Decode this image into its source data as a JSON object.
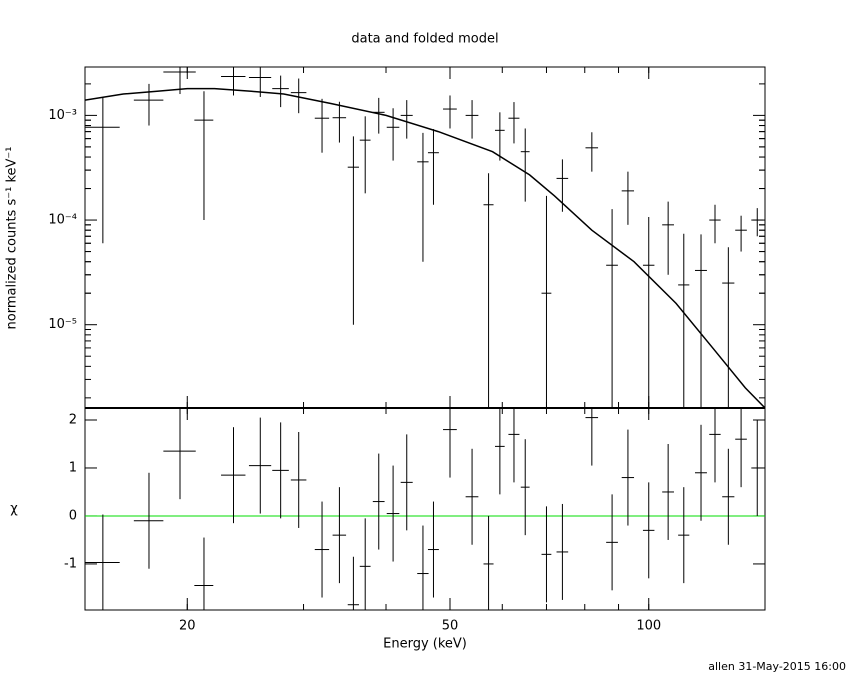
{
  "footer": "allen 31-May-2015 16:00",
  "chart_data": [
    {
      "type": "errorbar",
      "title": "data and folded model",
      "ylabel": "normalized counts s⁻¹ keV⁻¹",
      "log_x": true,
      "log_y": true,
      "color": "#000000",
      "xlim": [
        14,
        150
      ],
      "ylim": [
        1.6e-06,
        0.0029
      ],
      "yticks": [
        {
          "value": 1e-05,
          "label": "10⁻⁵"
        },
        {
          "value": 0.0001,
          "label": "10⁻⁴"
        },
        {
          "value": 0.001,
          "label": "10⁻³"
        }
      ],
      "x": [
        14.9,
        17.5,
        19.5,
        21.2,
        23.5,
        25.8,
        27.7,
        29.5,
        32,
        34,
        35.7,
        37.2,
        39,
        41,
        43,
        45.5,
        47.2,
        50,
        54,
        57.2,
        59.5,
        62.5,
        65,
        70,
        74,
        82,
        88,
        93,
        100,
        107,
        113,
        120,
        126,
        132,
        138,
        146
      ],
      "x_err": [
        0.9,
        0.9,
        1.1,
        0.7,
        1.0,
        1.0,
        0.8,
        0.8,
        0.8,
        0.8,
        0.7,
        0.7,
        0.8,
        0.9,
        0.9,
        0.9,
        0.9,
        1.2,
        1.2,
        1.0,
        1.0,
        1.2,
        1.0,
        1.2,
        1.5,
        1.8,
        1.8,
        2,
        2,
        2.2,
        2.2,
        2.5,
        2.5,
        2.8,
        2.8,
        3
      ],
      "values": [
        0.00077,
        0.0014,
        0.0026,
        0.0009,
        0.00235,
        0.0023,
        0.0018,
        0.00165,
        0.00094,
        0.00095,
        0.00032,
        0.00058,
        0.00107,
        0.00077,
        0.001,
        0.00036,
        0.00044,
        0.00115,
        0.001,
        0.00014,
        0.00072,
        0.00094,
        0.00045,
        2e-05,
        0.00025,
        0.00049,
        3.7e-05,
        0.00019,
        3.7e-05,
        9e-05,
        2.4e-05,
        3.3e-05,
        0.0001,
        2.5e-05,
        8e-05,
        0.0001
      ],
      "errors": [
        0.00071,
        0.0006,
        0.001,
        0.0008,
        0.0008,
        0.0008,
        0.0006,
        0.0006,
        0.0005,
        0.0004,
        0.00031,
        0.0004,
        0.0004,
        0.0004,
        0.0004,
        0.00032,
        0.0003,
        0.0004,
        0.0004,
        0.00014,
        0.00035,
        0.0004,
        0.0003,
        0.00015,
        0.00013,
        0.0002,
        9e-05,
        0.0001,
        7e-05,
        6e-05,
        5e-05,
        4e-05,
        4e-05,
        3e-05,
        3e-05,
        3e-05
      ],
      "model": {
        "x": [
          14,
          16,
          18,
          20,
          22,
          25,
          28,
          33,
          40,
          48,
          58,
          66,
          72,
          82,
          95,
          110,
          125,
          140,
          150
        ],
        "values": [
          0.0014,
          0.0016,
          0.0017,
          0.0018,
          0.0018,
          0.0017,
          0.0016,
          0.0013,
          0.001,
          0.0007,
          0.00045,
          0.00027,
          0.00017,
          8e-05,
          4e-05,
          1.6e-05,
          6e-06,
          2.5e-06,
          1.6e-06
        ]
      }
    },
    {
      "type": "errorbar",
      "xlabel": "Energy (keV)",
      "ylabel": "χ",
      "log_x": true,
      "log_y": false,
      "color": "#000000",
      "zero_line_color": "#00dd00",
      "xlim": [
        14,
        150
      ],
      "ylim": [
        -1.96,
        2.25
      ],
      "xticks": [
        20,
        50,
        100
      ],
      "yticks": [
        -1,
        0,
        1,
        2
      ],
      "x": [
        14.9,
        17.5,
        19.5,
        21.2,
        23.5,
        25.8,
        27.7,
        29.5,
        32,
        34,
        35.7,
        37.2,
        39,
        41,
        43,
        45.5,
        47.2,
        50,
        54,
        57.2,
        59.5,
        62.5,
        65,
        70,
        74,
        82,
        88,
        93,
        100,
        107,
        113,
        120,
        126,
        132,
        138,
        146
      ],
      "x_err": [
        0.9,
        0.9,
        1.1,
        0.7,
        1.0,
        1.0,
        0.8,
        0.8,
        0.8,
        0.8,
        0.7,
        0.7,
        0.8,
        0.9,
        0.9,
        0.9,
        0.9,
        1.2,
        1.2,
        1.0,
        1.0,
        1.2,
        1.0,
        1.2,
        1.5,
        1.8,
        1.8,
        2,
        2,
        2.2,
        2.2,
        2.5,
        2.5,
        2.8,
        2.8,
        3
      ],
      "values": [
        -0.97,
        -0.1,
        1.35,
        -1.45,
        0.85,
        1.05,
        0.95,
        0.75,
        -0.7,
        -0.4,
        -1.85,
        -1.05,
        0.3,
        0.05,
        0.7,
        -1.2,
        -0.7,
        1.8,
        0.4,
        -1.0,
        1.45,
        1.7,
        0.6,
        -0.8,
        -0.75,
        2.05,
        -0.55,
        0.8,
        -0.3,
        0.5,
        -0.4,
        0.9,
        1.7,
        0.4,
        1.6,
        1.0
      ],
      "errors": [
        1,
        1,
        1,
        1,
        1,
        1,
        1,
        1,
        1,
        1,
        1,
        1,
        1,
        1,
        1,
        1,
        1,
        1,
        1,
        1,
        1,
        1,
        1,
        1,
        1,
        1,
        1,
        1,
        1,
        1,
        1,
        1,
        1,
        1,
        1,
        1
      ]
    }
  ]
}
